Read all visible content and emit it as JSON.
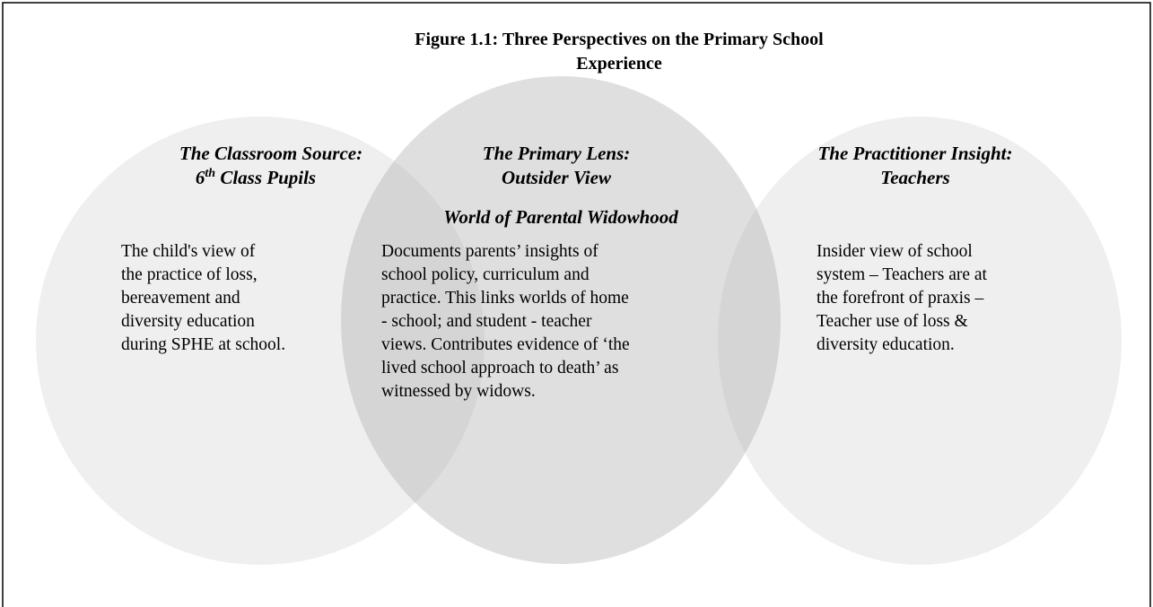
{
  "title": {
    "lines": [
      "Figure 1.1: Three Perspectives on the Primary School",
      "Experience"
    ]
  },
  "circles": [
    {
      "heading": [
        "The Classroom Source:"
      ],
      "heading_sup": {
        "base": "6",
        "sup": "th",
        "rest": " Class Pupils"
      },
      "body": [
        "The child's view of",
        "the practice of loss,",
        "bereavement and",
        "diversity education",
        "during SPHE at school."
      ]
    },
    {
      "heading": [
        "The Primary Lens:",
        "Outsider View"
      ],
      "subheading": "World of Parental Widowhood",
      "body": [
        "Documents parents’ insights of",
        "school policy, curriculum and",
        "practice. This links worlds of home",
        "- school; and student - teacher",
        "views. Contributes evidence of ‘the",
        "lived school approach to death’ as",
        "witnessed by widows."
      ]
    },
    {
      "heading": [
        "The Practitioner Insight:",
        "Teachers"
      ],
      "body": [
        "Insider view of school",
        "system – Teachers are at",
        "the forefront of praxis –",
        "Teacher use of loss &",
        "diversity education."
      ]
    }
  ]
}
